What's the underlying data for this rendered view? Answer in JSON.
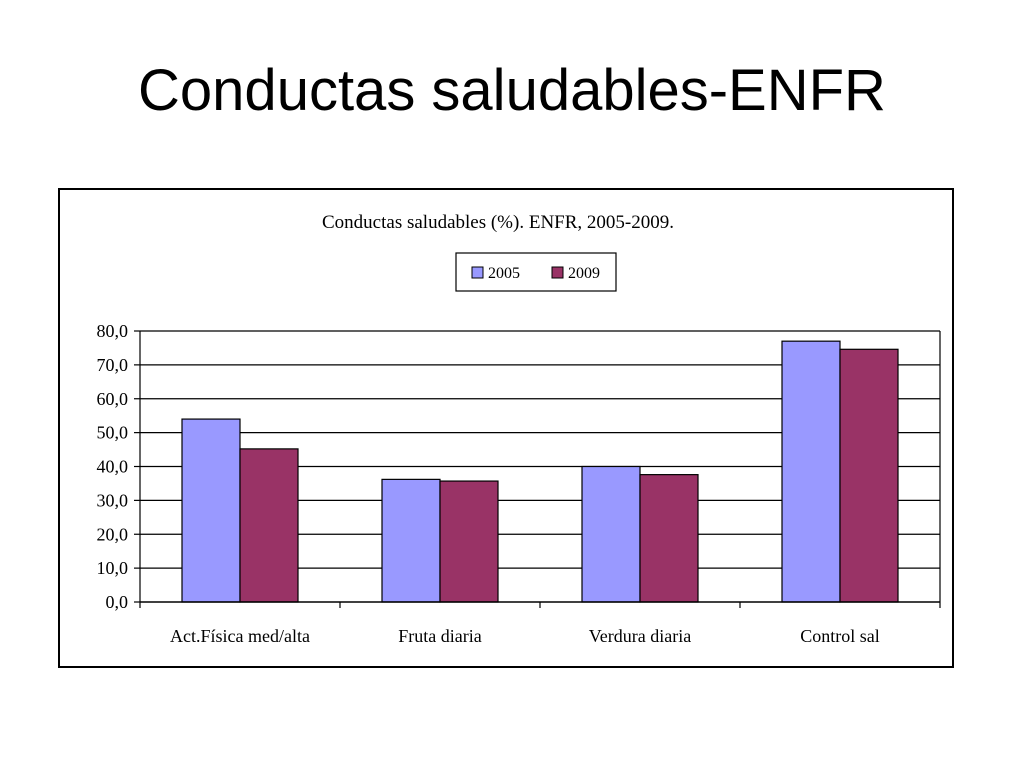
{
  "slide": {
    "title": "Conductas saludables-ENFR"
  },
  "chart_data": {
    "type": "bar",
    "title": "Conductas saludables (%). ENFR, 2005-2009.",
    "xlabel": "",
    "ylabel": "",
    "categories": [
      "Act.Física med/alta",
      "Fruta diaria",
      "Verdura diaria",
      "Control sal"
    ],
    "series": [
      {
        "name": "2005",
        "values": [
          54.0,
          36.2,
          40.0,
          77.0
        ],
        "color": "#9999ff"
      },
      {
        "name": "2009",
        "values": [
          45.2,
          35.7,
          37.6,
          74.6
        ],
        "color": "#993366"
      }
    ],
    "ylim": [
      0,
      80
    ],
    "yticks": [
      "0,0",
      "10,0",
      "20,0",
      "30,0",
      "40,0",
      "50,0",
      "60,0",
      "70,0",
      "80,0"
    ],
    "grid": true,
    "legend_position": "top-center"
  }
}
